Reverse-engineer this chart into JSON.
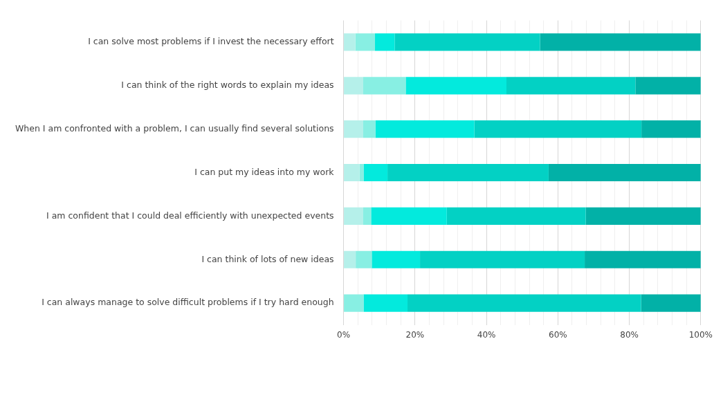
{
  "chart_data": {
    "type": "bar",
    "orientation": "horizontal",
    "stacked": true,
    "categories": [
      "I can solve most problems if I invest the necessary effort",
      "I can think of the right words to explain my ideas",
      "When I am confronted with a problem, I can usually find several solutions",
      "I can put my ideas into my work",
      "I am confident that I could deal efficiently with unexpected events",
      "I can think of lots of new ideas",
      "I can always manage to solve difficult problems if I try hard enough"
    ],
    "series": [
      {
        "color": "#b5f0ea",
        "values": [
          3.3,
          5.5,
          5.5,
          4.5,
          5.5,
          3.4,
          0
        ]
      },
      {
        "color": "#88efe3",
        "values": [
          5.5,
          11.9,
          3.4,
          1.1,
          2.2,
          4.5,
          5.6
        ]
      },
      {
        "color": "#03eadd",
        "values": [
          5.5,
          28.2,
          27.7,
          6.7,
          21.2,
          13.5,
          12.3
        ]
      },
      {
        "color": "#03d1c4",
        "values": [
          40.7,
          36.1,
          46.8,
          45.1,
          38.9,
          46.1,
          65.4
        ]
      },
      {
        "color": "#02b1a7",
        "values": [
          45,
          18.3,
          16.6,
          42.6,
          32.2,
          32.5,
          16.7
        ]
      }
    ],
    "xlim": [
      0,
      100
    ],
    "xticks": [
      {
        "value": 0,
        "label": "0%"
      },
      {
        "value": 4,
        "label": null
      },
      {
        "value": 8,
        "label": null
      },
      {
        "value": 12,
        "label": null
      },
      {
        "value": 16,
        "label": null
      },
      {
        "value": 20,
        "label": "20%"
      },
      {
        "value": 24,
        "label": null
      },
      {
        "value": 28,
        "label": null
      },
      {
        "value": 32,
        "label": null
      },
      {
        "value": 36,
        "label": null
      },
      {
        "value": 40,
        "label": "40%"
      },
      {
        "value": 44,
        "label": null
      },
      {
        "value": 48,
        "label": null
      },
      {
        "value": 52,
        "label": null
      },
      {
        "value": 56,
        "label": null
      },
      {
        "value": 60,
        "label": "60%"
      },
      {
        "value": 64,
        "label": null
      },
      {
        "value": 68,
        "label": null
      },
      {
        "value": 72,
        "label": null
      },
      {
        "value": 76,
        "label": null
      },
      {
        "value": 80,
        "label": "80%"
      },
      {
        "value": 84,
        "label": null
      },
      {
        "value": 88,
        "label": null
      },
      {
        "value": 92,
        "label": null
      },
      {
        "value": 96,
        "label": null
      },
      {
        "value": 100,
        "label": "100%"
      }
    ],
    "grid": "x",
    "legend": false
  }
}
